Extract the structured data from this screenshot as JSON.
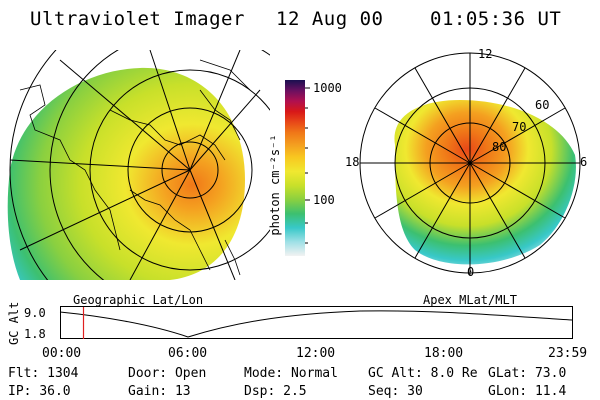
{
  "header": {
    "instrument": "Ultraviolet Imager",
    "date": "12 Aug 00",
    "time": "01:05:36 UT"
  },
  "colorbar": {
    "label": "photon cm⁻²s⁻¹",
    "ticks": [
      "1000",
      "100"
    ],
    "colors": [
      "#f2f2f2",
      "#9fe0e6",
      "#38c8c8",
      "#3cc070",
      "#8ad040",
      "#c8e02a",
      "#f0e830",
      "#f8c820",
      "#f4a020",
      "#f07818",
      "#e84818",
      "#d81818",
      "#b01050",
      "#6a1060",
      "#1a1050"
    ]
  },
  "geo_panel": {
    "caption": "Geographic Lat/Lon"
  },
  "apex_panel": {
    "caption": "Apex MLat/MLT",
    "lat_labels": [
      "80",
      "70",
      "60"
    ],
    "mlt_labels": [
      "12",
      "18",
      "6",
      "0"
    ]
  },
  "timeline": {
    "axis_label": "GC Alt",
    "y_ticks": [
      "9.0",
      "1.8"
    ],
    "x_ticks": [
      "00:00",
      "06:00",
      "12:00",
      "18:00",
      "23:59"
    ],
    "marker_time_fraction": 0.045,
    "marker_color": "#e02020"
  },
  "status": {
    "row1": [
      {
        "key": "Flt:",
        "val": "1304"
      },
      {
        "key": "Door:",
        "val": "Open"
      },
      {
        "key": "Mode:",
        "val": "Normal"
      },
      {
        "key": "GC Alt:",
        "val": "8.0 Re"
      },
      {
        "key": "GLat:",
        "val": "73.0"
      }
    ],
    "row2": [
      {
        "key": "IP:",
        "val": "36.0"
      },
      {
        "key": "Gain:",
        "val": "13"
      },
      {
        "key": "Dsp:",
        "val": "2.5"
      },
      {
        "key": "Seq:",
        "val": "30"
      },
      {
        "key": "GLon:",
        "val": "11.4"
      }
    ]
  }
}
